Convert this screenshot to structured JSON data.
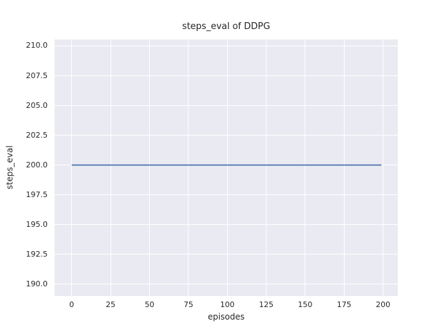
{
  "chart_data": {
    "type": "line",
    "title": "steps_eval of DDPG",
    "xlabel": "episodes",
    "ylabel": "steps_eval",
    "xlim": [
      -11.0,
      209.5
    ],
    "ylim": [
      189.0,
      210.55
    ],
    "xticks": [
      0,
      25,
      50,
      75,
      100,
      125,
      150,
      175,
      200
    ],
    "xtick_labels": [
      "0",
      "25",
      "50",
      "75",
      "100",
      "125",
      "150",
      "175",
      "200"
    ],
    "yticks": [
      190.0,
      192.5,
      195.0,
      197.5,
      200.0,
      202.5,
      205.0,
      207.5,
      210.0
    ],
    "ytick_labels": [
      "190.0",
      "192.5",
      "195.0",
      "197.5",
      "200.0",
      "202.5",
      "205.0",
      "207.5",
      "210.0"
    ],
    "grid": true,
    "legend": false,
    "plot_background": "#eaeaf2",
    "grid_color": "#ffffff",
    "text_color": "#262626",
    "series": [
      {
        "name": "steps_eval",
        "color": "#4c72b0",
        "x": [
          0,
          199
        ],
        "y": [
          200.0,
          200.0
        ]
      }
    ]
  }
}
